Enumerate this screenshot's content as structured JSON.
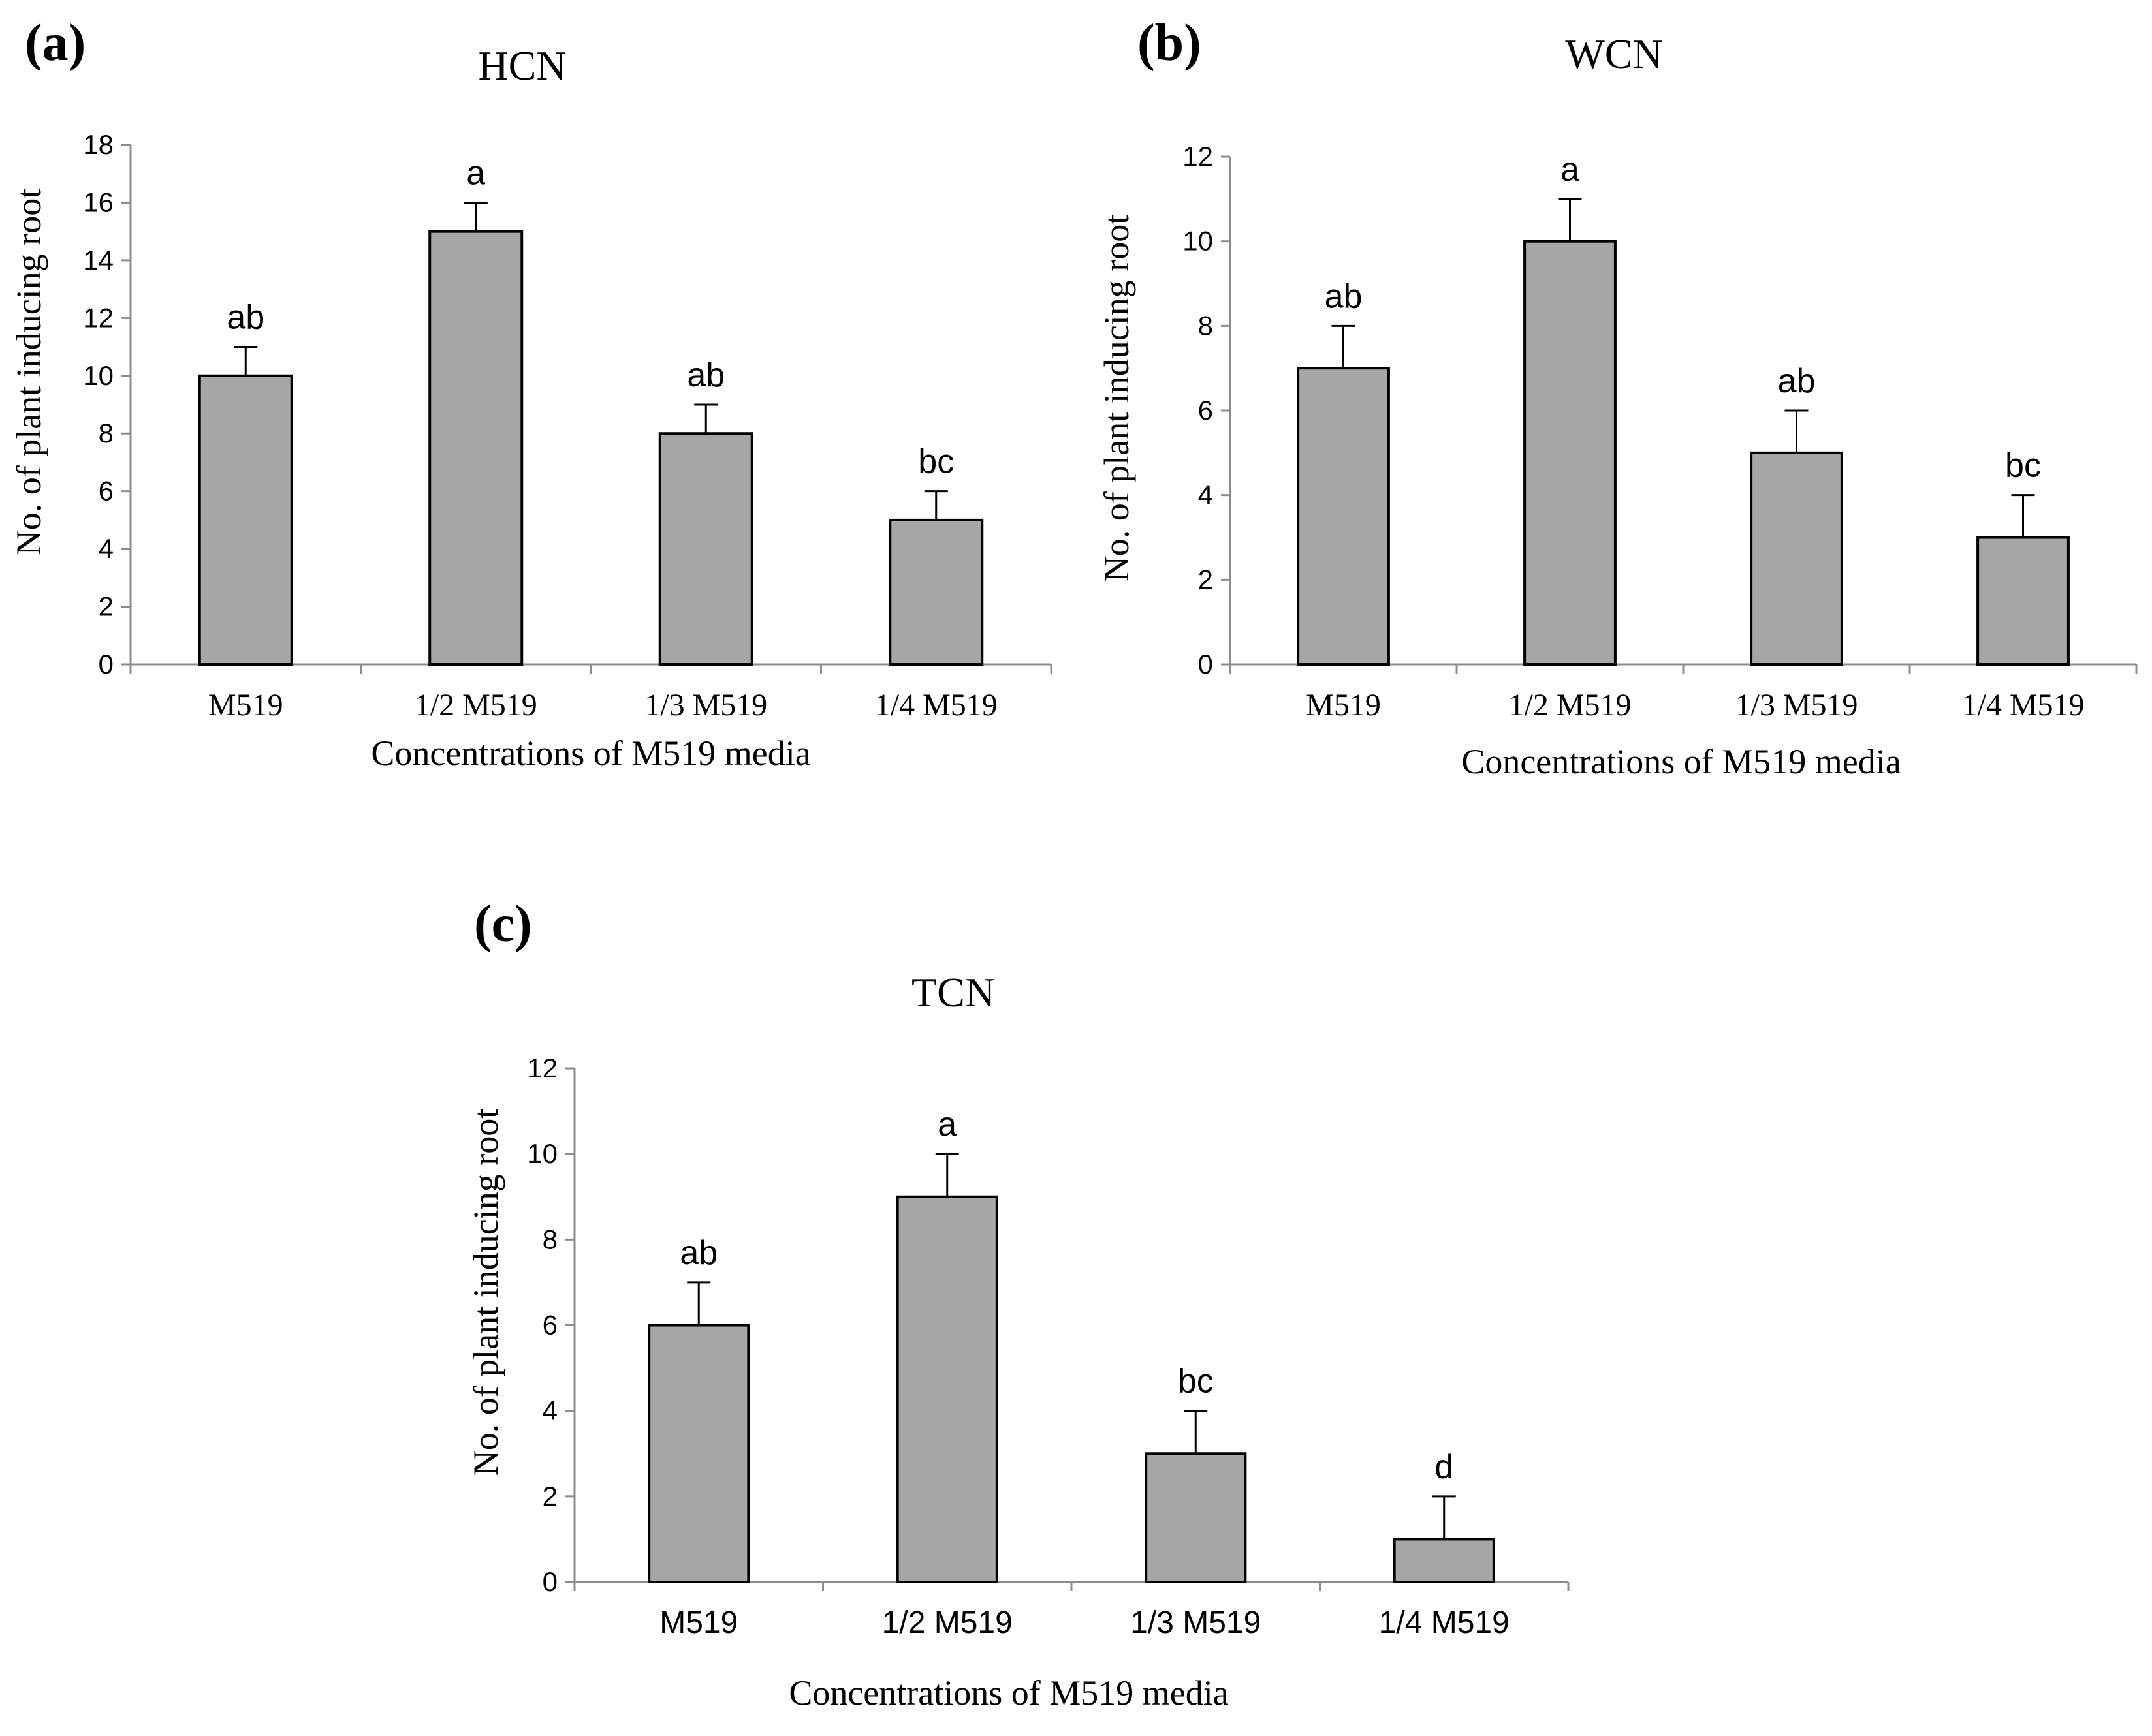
{
  "figure": {
    "panels": [
      {
        "id": "a",
        "letter": "(a)"
      },
      {
        "id": "b",
        "letter": "(b)"
      },
      {
        "id": "c",
        "letter": "(c)"
      }
    ]
  },
  "chart_data": [
    {
      "type": "bar",
      "panel": "(a)",
      "title": "HCN",
      "categories": [
        "M519",
        "1/2 M519",
        "1/3 M519",
        "1/4 M519"
      ],
      "values": [
        10,
        15,
        8,
        5
      ],
      "error": [
        1,
        1,
        1,
        1
      ],
      "significance": [
        "ab",
        "a",
        "ab",
        "bc"
      ],
      "xlabel": "Concentrations of M519  media",
      "ylabel": "No. of plant inducing root",
      "ylim": [
        0,
        18
      ],
      "yticks": [
        0,
        2,
        4,
        6,
        8,
        10,
        12,
        14,
        16,
        18
      ],
      "bar_color": "#a6a6a6",
      "tick_font": "serif"
    },
    {
      "type": "bar",
      "panel": "(b)",
      "title": "WCN",
      "categories": [
        "M519",
        "1/2 M519",
        "1/3 M519",
        "1/4 M519"
      ],
      "values": [
        7,
        10,
        5,
        3
      ],
      "error": [
        1,
        1,
        1,
        1
      ],
      "significance": [
        "ab",
        "a",
        "ab",
        "bc"
      ],
      "xlabel": "Concentrations of M519  media",
      "ylabel": "No. of plant inducing root",
      "ylim": [
        0,
        12
      ],
      "yticks": [
        0,
        2,
        4,
        6,
        8,
        10,
        12
      ],
      "bar_color": "#a6a6a6",
      "tick_font": "serif"
    },
    {
      "type": "bar",
      "panel": "(c)",
      "title": "TCN",
      "categories": [
        "M519",
        "1/2 M519",
        "1/3 M519",
        "1/4 M519"
      ],
      "values": [
        6,
        9,
        3,
        1
      ],
      "error": [
        1,
        1,
        1,
        1
      ],
      "significance": [
        "ab",
        "a",
        "bc",
        "d"
      ],
      "xlabel": "Concentrations of M519 media",
      "ylabel": "No. of plant inducing root",
      "ylim": [
        0,
        12
      ],
      "yticks": [
        0,
        2,
        4,
        6,
        8,
        10,
        12
      ],
      "bar_color": "#a6a6a6",
      "tick_font": "sans"
    }
  ]
}
